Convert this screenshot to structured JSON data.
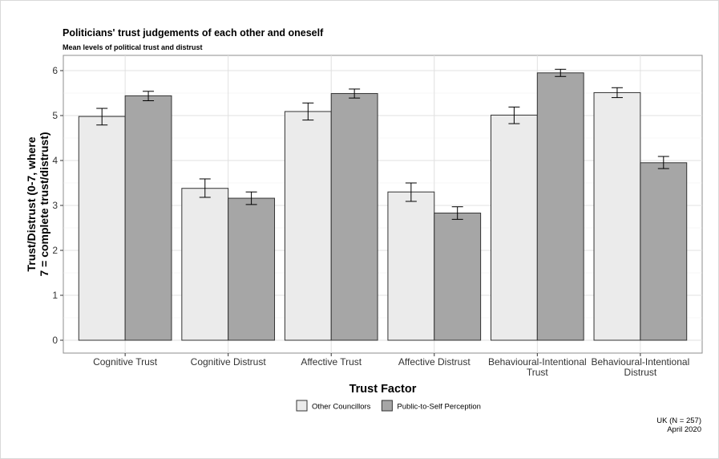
{
  "chart_data": {
    "type": "bar",
    "title": "Politicians' trust judgements of each other and oneself",
    "subtitle": "Mean levels of political trust and distrust",
    "xlabel": "Trust Factor",
    "ylabel_lines": [
      "Trust/Distrust (0-7, where",
      "7 = complete trust/distrust)"
    ],
    "ylim": [
      -0.25,
      6.3
    ],
    "yticks": [
      0,
      1,
      2,
      3,
      4,
      5,
      6
    ],
    "grid": true,
    "legend_position": "bottom",
    "categories": [
      [
        "Cognitive Trust"
      ],
      [
        "Cognitive Distrust"
      ],
      [
        "Affective Trust"
      ],
      [
        "Affective Distrust"
      ],
      [
        "Behavioural-Intentional",
        "Trust"
      ],
      [
        "Behavioural-Intentional",
        "Distrust"
      ]
    ],
    "series": [
      {
        "name": "Other Councillors",
        "color": "#ebebeb",
        "values": [
          4.98,
          3.38,
          5.09,
          3.3,
          5.01,
          5.51
        ],
        "err_low": [
          4.79,
          3.18,
          4.9,
          3.09,
          4.82,
          5.4
        ],
        "err_high": [
          5.16,
          3.59,
          5.28,
          3.5,
          5.19,
          5.62
        ]
      },
      {
        "name": "Public-to-Self Perception",
        "color": "#a6a6a6",
        "values": [
          5.44,
          3.16,
          5.49,
          2.83,
          5.95,
          3.95
        ],
        "err_low": [
          5.33,
          3.02,
          5.39,
          2.69,
          5.87,
          3.82
        ],
        "err_high": [
          5.54,
          3.3,
          5.59,
          2.97,
          6.03,
          4.09
        ]
      }
    ],
    "caption_lines": [
      "UK (N = 257)",
      "April 2020"
    ]
  }
}
